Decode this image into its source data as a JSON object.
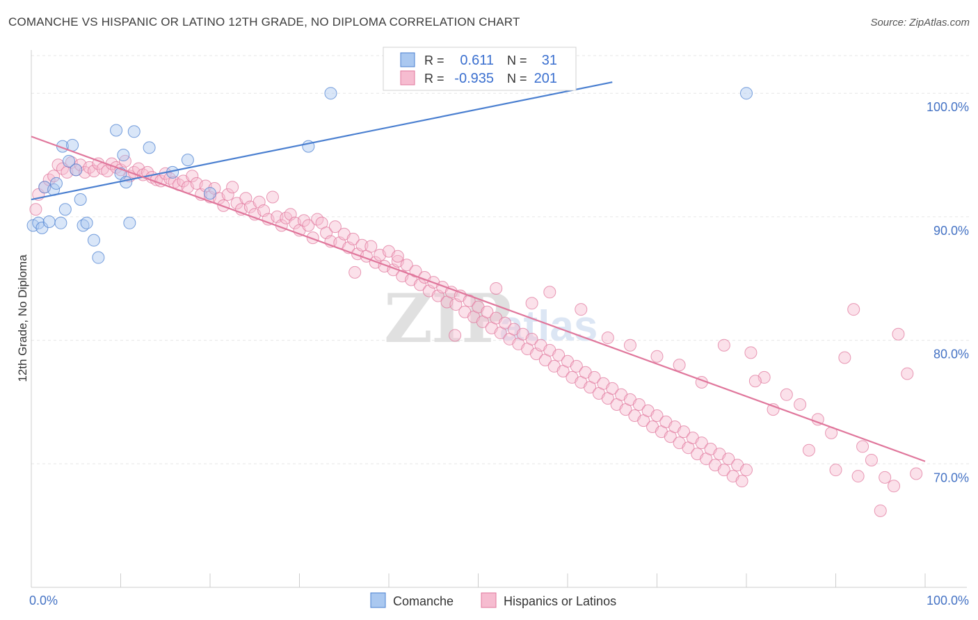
{
  "header": {
    "title": "COMANCHE VS HISPANIC OR LATINO 12TH GRADE, NO DIPLOMA CORRELATION CHART",
    "source": "Source: ZipAtlas.com"
  },
  "watermark": {
    "part1": "ZIP",
    "part2": "atlas"
  },
  "legend_box": {
    "rows": [
      {
        "r_label": "R =",
        "r_value": "0.611",
        "n_label": "N =",
        "n_value": "31",
        "color": "#aac8f0",
        "stroke": "#4a7fd0"
      },
      {
        "r_label": "R =",
        "r_value": "-0.935",
        "n_label": "N =",
        "n_value": "201",
        "color": "#f6bcd0",
        "stroke": "#e0779c"
      }
    ]
  },
  "bottom_legend": [
    {
      "label": "Comanche",
      "color": "#aac8f0",
      "stroke": "#4a7fd0"
    },
    {
      "label": "Hispanics or Latinos",
      "color": "#f6bcd0",
      "stroke": "#e0779c"
    }
  ],
  "chart_data": {
    "type": "scatter",
    "xlabel": "",
    "ylabel": "12th Grade, No Diploma",
    "xlim": [
      0,
      100
    ],
    "ylim": [
      60,
      103.5
    ],
    "x_tick_labels": [
      {
        "value": 0,
        "label": "0.0%"
      },
      {
        "value": 100,
        "label": "100.0%"
      }
    ],
    "y_tick_labels": [
      {
        "value": 70,
        "label": "70.0%"
      },
      {
        "value": 80,
        "label": "80.0%"
      },
      {
        "value": 90,
        "label": "90.0%"
      },
      {
        "value": 100,
        "label": "100.0%"
      }
    ],
    "grid": true,
    "series": [
      {
        "name": "Comanche",
        "color": "#4a7fd0",
        "fill": "#aac8f0",
        "trend": {
          "x": [
            0,
            65
          ],
          "y": [
            91.4,
            100.9
          ]
        },
        "points": [
          [
            0.2,
            89.3
          ],
          [
            0.8,
            89.5
          ],
          [
            1.2,
            89.1
          ],
          [
            1.5,
            92.4
          ],
          [
            2.0,
            89.6
          ],
          [
            2.5,
            92.2
          ],
          [
            2.8,
            92.7
          ],
          [
            3.3,
            89.5
          ],
          [
            3.5,
            95.7
          ],
          [
            3.8,
            90.6
          ],
          [
            4.2,
            94.5
          ],
          [
            4.6,
            95.8
          ],
          [
            5.0,
            93.8
          ],
          [
            5.5,
            91.4
          ],
          [
            5.8,
            89.3
          ],
          [
            6.2,
            89.5
          ],
          [
            7.0,
            88.1
          ],
          [
            7.5,
            86.7
          ],
          [
            9.5,
            97.0
          ],
          [
            10.0,
            93.5
          ],
          [
            10.3,
            95.0
          ],
          [
            10.6,
            92.8
          ],
          [
            11.0,
            89.5
          ],
          [
            11.5,
            96.9
          ],
          [
            13.2,
            95.6
          ],
          [
            15.8,
            93.6
          ],
          [
            17.5,
            94.6
          ],
          [
            20.0,
            91.9
          ],
          [
            31.0,
            95.7
          ],
          [
            33.5,
            100.0
          ],
          [
            80.0,
            100.0
          ]
        ]
      },
      {
        "name": "Hispanics or Latinos",
        "color": "#e0779c",
        "fill": "#f6bcd0",
        "trend": {
          "x": [
            0,
            100
          ],
          "y": [
            96.5,
            70.2
          ]
        },
        "points": [
          [
            0.5,
            90.6
          ],
          [
            0.8,
            91.8
          ],
          [
            1.5,
            92.4
          ],
          [
            2.0,
            93.0
          ],
          [
            2.5,
            93.3
          ],
          [
            3.0,
            94.2
          ],
          [
            3.5,
            93.9
          ],
          [
            4.0,
            93.6
          ],
          [
            4.5,
            94.4
          ],
          [
            5.0,
            93.8
          ],
          [
            5.5,
            94.2
          ],
          [
            6.0,
            93.6
          ],
          [
            6.5,
            94.0
          ],
          [
            7.0,
            93.7
          ],
          [
            7.5,
            94.3
          ],
          [
            8.0,
            93.9
          ],
          [
            8.5,
            93.7
          ],
          [
            9.0,
            94.3
          ],
          [
            9.5,
            94.0
          ],
          [
            10.0,
            93.8
          ],
          [
            10.5,
            94.5
          ],
          [
            11.0,
            93.3
          ],
          [
            11.5,
            93.6
          ],
          [
            12.0,
            93.9
          ],
          [
            12.5,
            93.4
          ],
          [
            13.0,
            93.6
          ],
          [
            13.5,
            93.2
          ],
          [
            14.0,
            93.0
          ],
          [
            14.5,
            92.9
          ],
          [
            15.0,
            93.5
          ],
          [
            15.5,
            93.1
          ],
          [
            16.0,
            92.8
          ],
          [
            16.5,
            92.6
          ],
          [
            17.0,
            92.9
          ],
          [
            17.5,
            92.4
          ],
          [
            18.0,
            93.3
          ],
          [
            18.5,
            92.7
          ],
          [
            19.0,
            91.8
          ],
          [
            19.5,
            92.5
          ],
          [
            20.0,
            91.6
          ],
          [
            20.5,
            92.3
          ],
          [
            21.0,
            91.5
          ],
          [
            21.5,
            90.9
          ],
          [
            22.0,
            91.8
          ],
          [
            22.5,
            92.4
          ],
          [
            23.0,
            91.1
          ],
          [
            23.5,
            90.6
          ],
          [
            24.0,
            91.5
          ],
          [
            24.5,
            90.8
          ],
          [
            25.0,
            90.2
          ],
          [
            25.5,
            91.2
          ],
          [
            26.0,
            90.5
          ],
          [
            26.5,
            89.8
          ],
          [
            27.0,
            91.6
          ],
          [
            27.5,
            90.0
          ],
          [
            28.0,
            89.3
          ],
          [
            28.5,
            89.9
          ],
          [
            29.0,
            90.2
          ],
          [
            29.5,
            89.5
          ],
          [
            30.0,
            88.9
          ],
          [
            30.5,
            89.7
          ],
          [
            31.0,
            89.3
          ],
          [
            31.5,
            88.3
          ],
          [
            32.0,
            89.8
          ],
          [
            32.5,
            89.5
          ],
          [
            33.0,
            88.7
          ],
          [
            33.5,
            88.0
          ],
          [
            34.0,
            89.2
          ],
          [
            34.5,
            87.9
          ],
          [
            35.0,
            88.6
          ],
          [
            35.5,
            87.5
          ],
          [
            36.0,
            88.2
          ],
          [
            36.5,
            87.0
          ],
          [
            37.0,
            87.7
          ],
          [
            37.5,
            86.8
          ],
          [
            38.0,
            87.6
          ],
          [
            38.5,
            86.3
          ],
          [
            39.0,
            86.9
          ],
          [
            39.5,
            86.0
          ],
          [
            40.0,
            87.2
          ],
          [
            40.5,
            85.7
          ],
          [
            41.0,
            86.4
          ],
          [
            41.5,
            85.2
          ],
          [
            42.0,
            86.1
          ],
          [
            42.5,
            84.9
          ],
          [
            43.0,
            85.6
          ],
          [
            43.5,
            84.5
          ],
          [
            44.0,
            85.1
          ],
          [
            44.5,
            84.0
          ],
          [
            45.0,
            84.7
          ],
          [
            45.5,
            83.6
          ],
          [
            46.0,
            84.3
          ],
          [
            46.5,
            83.1
          ],
          [
            47.0,
            83.9
          ],
          [
            47.5,
            82.9
          ],
          [
            48.0,
            83.6
          ],
          [
            48.5,
            82.3
          ],
          [
            49.0,
            83.2
          ],
          [
            49.5,
            81.9
          ],
          [
            50.0,
            82.7
          ],
          [
            50.5,
            81.5
          ],
          [
            51.0,
            82.3
          ],
          [
            51.5,
            81.0
          ],
          [
            52.0,
            81.8
          ],
          [
            52.5,
            80.6
          ],
          [
            53.0,
            81.4
          ],
          [
            53.5,
            80.1
          ],
          [
            54.0,
            80.9
          ],
          [
            54.5,
            79.7
          ],
          [
            55.0,
            80.5
          ],
          [
            55.5,
            79.3
          ],
          [
            56.0,
            80.1
          ],
          [
            56.5,
            78.9
          ],
          [
            57.0,
            79.6
          ],
          [
            57.5,
            78.4
          ],
          [
            58.0,
            79.2
          ],
          [
            58.5,
            77.9
          ],
          [
            59.0,
            78.8
          ],
          [
            59.5,
            77.5
          ],
          [
            60.0,
            78.3
          ],
          [
            60.5,
            77.0
          ],
          [
            61.0,
            77.9
          ],
          [
            61.5,
            76.6
          ],
          [
            62.0,
            77.4
          ],
          [
            62.5,
            76.2
          ],
          [
            63.0,
            77.0
          ],
          [
            63.5,
            75.7
          ],
          [
            64.0,
            76.5
          ],
          [
            64.5,
            75.3
          ],
          [
            65.0,
            76.1
          ],
          [
            65.5,
            74.8
          ],
          [
            66.0,
            75.6
          ],
          [
            66.5,
            74.4
          ],
          [
            67.0,
            75.2
          ],
          [
            67.5,
            73.9
          ],
          [
            68.0,
            74.8
          ],
          [
            68.5,
            73.5
          ],
          [
            69.0,
            74.3
          ],
          [
            69.5,
            73.0
          ],
          [
            70.0,
            73.9
          ],
          [
            70.5,
            72.6
          ],
          [
            71.0,
            73.4
          ],
          [
            71.5,
            72.2
          ],
          [
            72.0,
            73.0
          ],
          [
            72.5,
            71.7
          ],
          [
            73.0,
            72.6
          ],
          [
            73.5,
            71.3
          ],
          [
            74.0,
            72.1
          ],
          [
            74.5,
            70.8
          ],
          [
            75.0,
            71.7
          ],
          [
            75.5,
            70.4
          ],
          [
            76.0,
            71.2
          ],
          [
            76.5,
            69.9
          ],
          [
            77.0,
            70.8
          ],
          [
            77.5,
            69.5
          ],
          [
            78.0,
            70.4
          ],
          [
            78.5,
            69.0
          ],
          [
            79.0,
            69.9
          ],
          [
            79.5,
            68.6
          ],
          [
            80.0,
            69.5
          ],
          [
            36.2,
            85.5
          ],
          [
            41.0,
            86.8
          ],
          [
            47.4,
            80.4
          ],
          [
            52.0,
            84.2
          ],
          [
            56.0,
            83.0
          ],
          [
            58.0,
            83.9
          ],
          [
            61.5,
            82.5
          ],
          [
            64.5,
            80.2
          ],
          [
            67.0,
            79.6
          ],
          [
            70.0,
            78.7
          ],
          [
            72.5,
            78.0
          ],
          [
            75.0,
            76.6
          ],
          [
            77.5,
            79.6
          ],
          [
            80.5,
            79.0
          ],
          [
            82.0,
            77.0
          ],
          [
            84.5,
            75.6
          ],
          [
            86.0,
            74.8
          ],
          [
            88.0,
            73.6
          ],
          [
            89.5,
            72.5
          ],
          [
            91.0,
            78.6
          ],
          [
            92.0,
            82.5
          ],
          [
            93.0,
            71.4
          ],
          [
            94.0,
            70.3
          ],
          [
            95.5,
            68.9
          ],
          [
            96.5,
            68.2
          ],
          [
            98.0,
            77.3
          ],
          [
            99.0,
            69.2
          ],
          [
            97.0,
            80.5
          ],
          [
            92.5,
            69.0
          ],
          [
            87.0,
            71.1
          ],
          [
            83.0,
            74.4
          ],
          [
            81.0,
            76.7
          ],
          [
            90.0,
            69.5
          ],
          [
            95.0,
            66.2
          ]
        ]
      }
    ]
  }
}
